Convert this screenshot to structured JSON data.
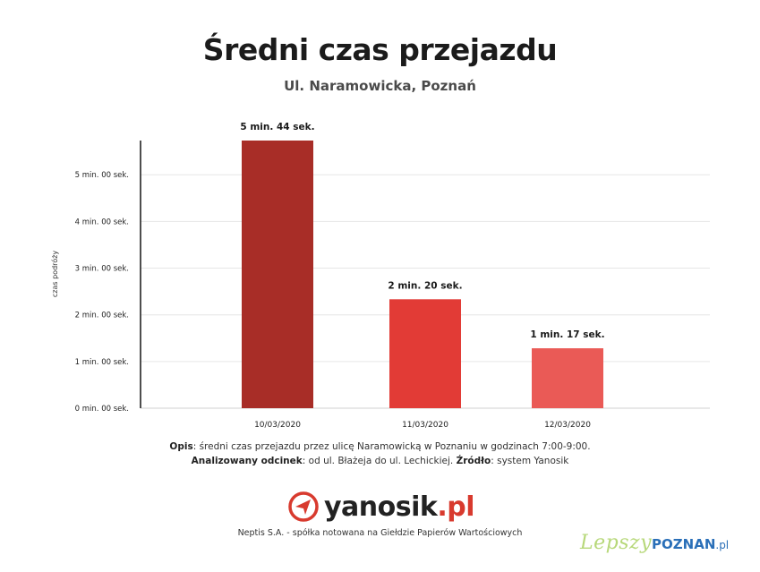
{
  "header": {
    "title": "Średni czas przejazdu",
    "subtitle": "Ul. Naramowicka, Poznań"
  },
  "chart_data": {
    "type": "bar",
    "title": "Średni czas przejazdu",
    "subtitle": "Ul. Naramowicka, Poznań",
    "xlabel": "",
    "ylabel": "czas podróży",
    "categories": [
      "10/03/2020",
      "11/03/2020",
      "12/03/2020"
    ],
    "values_seconds": [
      344,
      140,
      77
    ],
    "data_labels": [
      "5 min. 44 sek.",
      "2 min. 20 sek.",
      "1 min. 17 sek."
    ],
    "bar_colors": [
      "#a82d27",
      "#e23b36",
      "#ea5a56"
    ],
    "y_ticks_seconds": [
      0,
      60,
      120,
      180,
      240,
      300
    ],
    "y_tick_labels": [
      "0 min. 00 sek.",
      "1 min. 00 sek.",
      "2 min. 00 sek.",
      "3 min. 00 sek.",
      "4 min. 00 sek.",
      "5 min. 00 sek."
    ],
    "ylim_seconds": [
      0,
      344
    ],
    "grid": true,
    "legend": "none"
  },
  "description": {
    "line1_label": "Opis",
    "line1_text": ": średni czas przejazdu przez ulicę Naramowicką w Poznaniu w godzinach 7:00-9:00.",
    "line2_label": "Analizowany odcinek",
    "line2_text": ": od ul. Błażeja do ul. Lechickiej. ",
    "line2_label2": "Źródło",
    "line2_text2": ": system Yanosik"
  },
  "logo": {
    "icon": "yanosik-logo-icon",
    "name": "yanosik",
    "suffix": ".pl"
  },
  "footer": {
    "text": "Neptis S.A. - spółka notowana na Giełdzie Papierów Wartościowych"
  },
  "watermark": {
    "part1": "Lepszy",
    "part2": "POZNAN",
    "part3": ".pl"
  }
}
